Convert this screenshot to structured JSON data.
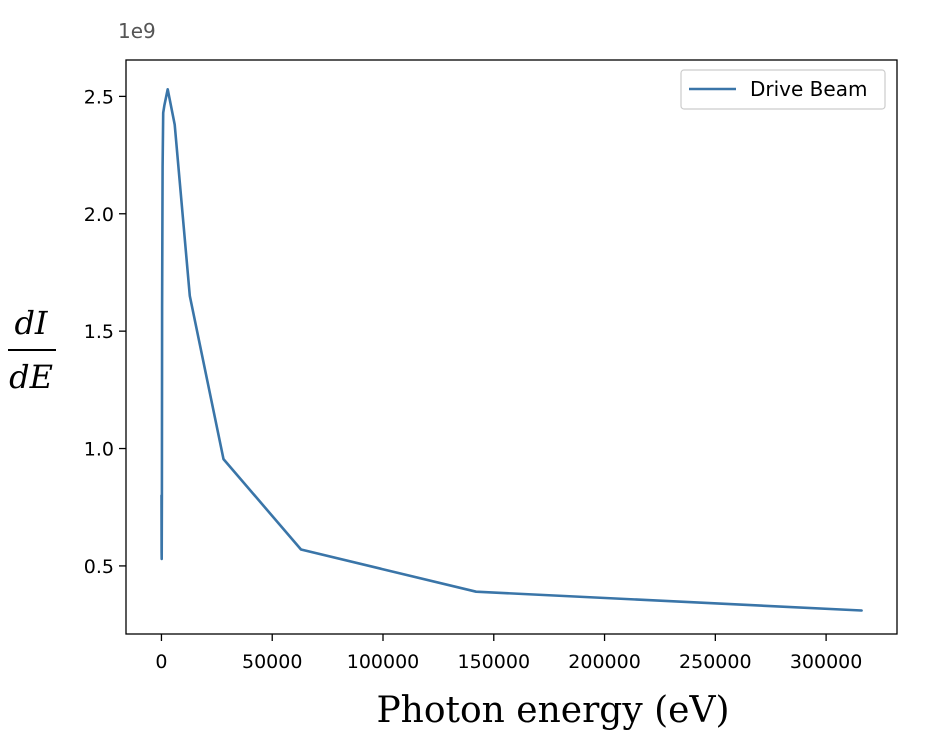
{
  "chart_data": {
    "type": "line",
    "xlabel": "Photon energy (eV)",
    "ylabel_numerator": "dI",
    "ylabel_denominator": "dE",
    "y_offset_label": "1e9",
    "xlim": [
      -16000,
      332000
    ],
    "ylim": [
      0.21,
      2.655
    ],
    "y_multiplier": 1000000000,
    "x_ticks": [
      0,
      50000,
      100000,
      150000,
      200000,
      250000,
      300000
    ],
    "x_tick_labels": [
      "0",
      "50000",
      "100000",
      "150000",
      "200000",
      "250000",
      "300000"
    ],
    "y_ticks": [
      0.5,
      1.0,
      1.5,
      2.0,
      2.5
    ],
    "y_tick_labels": [
      "0.5",
      "1.0",
      "1.5",
      "2.0",
      "2.5"
    ],
    "grid": false,
    "legend_position": "top-right",
    "series": [
      {
        "name": "Drive Beam",
        "color": "#3a75a8",
        "x": [
          10,
          60,
          120,
          200,
          300,
          500,
          800,
          1300,
          2800,
          6000,
          12800,
          28000,
          63000,
          142000,
          316000
        ],
        "y": [
          0.8,
          0.56,
          0.53,
          0.8,
          1.6,
          2.2,
          2.43,
          2.46,
          2.53,
          2.38,
          1.65,
          0.955,
          0.57,
          0.39,
          0.31
        ]
      }
    ]
  }
}
